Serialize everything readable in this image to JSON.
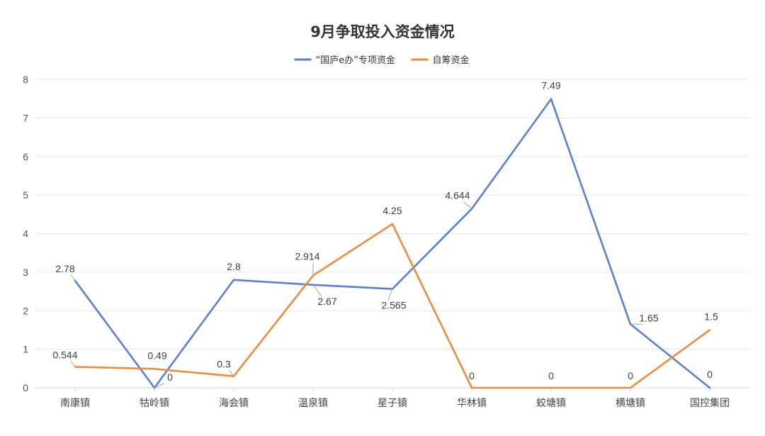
{
  "chart_data": {
    "type": "line",
    "title": "9月争取投入资金情况",
    "xlabel": "",
    "ylabel": "",
    "categories": [
      "南康镇",
      "牯岭镇",
      "海会镇",
      "温泉镇",
      "星子镇",
      "华林镇",
      "蛟塘镇",
      "横塘镇",
      "国控集团"
    ],
    "ylim": [
      0,
      8
    ],
    "yticks": [
      0,
      1,
      2,
      3,
      4,
      5,
      6,
      7,
      8
    ],
    "grid": true,
    "legend_position": "top-center",
    "series": [
      {
        "name": "“国庐e办”专项资金",
        "color": "#5b7fd4",
        "values": [
          2.78,
          0,
          2.8,
          2.67,
          2.565,
          4.644,
          7.49,
          1.65,
          0
        ],
        "labels": [
          "2.78",
          "0",
          "2.8",
          "2.67",
          "2.565",
          "4.644",
          "7.49",
          "1.65",
          "0"
        ]
      },
      {
        "name": "自筹资金",
        "color": "#ed8c3d",
        "values": [
          0.544,
          0.49,
          0.3,
          2.914,
          4.25,
          0,
          0,
          0,
          1.5
        ],
        "labels": [
          "0.544",
          "0.49",
          "0.3",
          "2.914",
          "4.25",
          "0",
          "0",
          "0",
          "1.5"
        ]
      }
    ]
  },
  "colors": {
    "grid": "#e6e6e6",
    "axis": "#d0d0d0",
    "leader": "#aaaaaa"
  }
}
